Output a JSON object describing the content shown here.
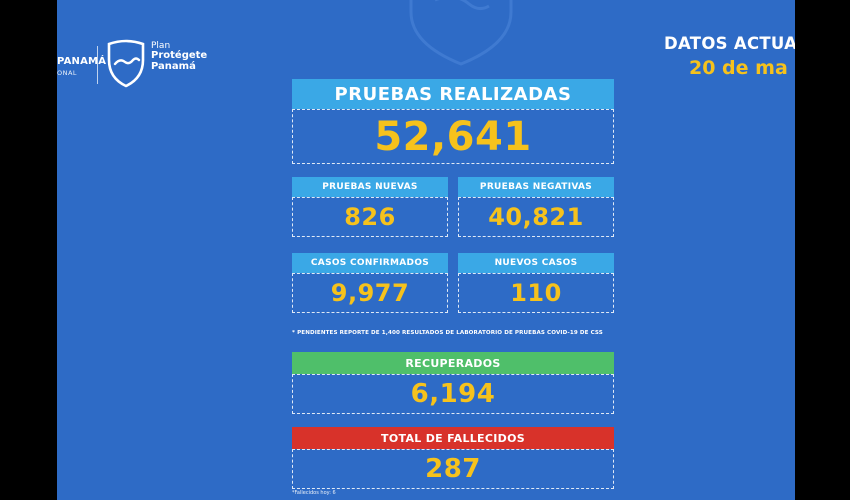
{
  "header": {
    "gov_line1": "PANAMÁ",
    "gov_line2": "ONAL",
    "plan_line1": "Plan",
    "plan_line2": "Protégete",
    "plan_line3": "Panamá",
    "datos_label": "DATOS ACTUA",
    "fecha_label": "20 de ma"
  },
  "stats": {
    "pruebas_realizadas": {
      "label": "PRUEBAS REALIZADAS",
      "value": "52,641"
    },
    "pruebas_nuevas": {
      "label": "PRUEBAS NUEVAS",
      "value": "826"
    },
    "pruebas_negativas": {
      "label": "PRUEBAS NEGATIVAS",
      "value": "40,821"
    },
    "casos_confirmados": {
      "label": "CASOS CONFIRMADOS",
      "value": "9,977"
    },
    "nuevos_casos": {
      "label": "NUEVOS CASOS",
      "value": "110"
    },
    "recuperados": {
      "label": "RECUPERADOS",
      "value": "6,194"
    },
    "total_fallecidos": {
      "label": "TOTAL DE FALLECIDOS",
      "value": "287"
    }
  },
  "note": "* PENDIENTES REPORTE DE 1,400 RESULTADOS DE LABORATORIO DE PRUEBAS COVID-19  DE CSS",
  "footnote": "*Fallecidos hoy: 6",
  "colors": {
    "background": "#2e6bc6",
    "accent_yellow": "#f6c21c",
    "bar_cyan": "#3aa8e6",
    "bar_green": "#4fbf6a",
    "bar_red": "#d8322a"
  },
  "icons": [
    "shield-watermark-icon",
    "plan-shield-icon"
  ]
}
